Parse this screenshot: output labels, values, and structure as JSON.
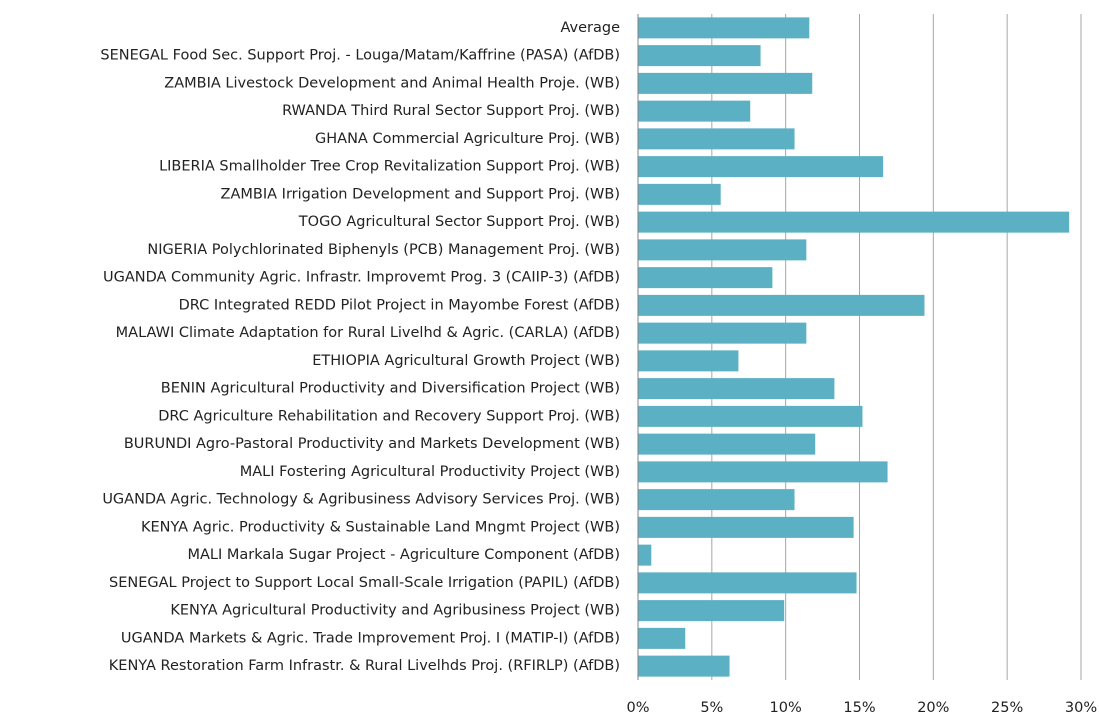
{
  "chart_data": {
    "type": "bar",
    "orientation": "horizontal",
    "color": "#5bb0c3",
    "grid": true,
    "categories": [
      "Average",
      "SENEGAL Food Sec. Support Proj. - Louga/Matam/Kaffrine (PASA)  (AfDB)",
      "ZAMBIA Livestock Development and Animal Health Proje. (WB)",
      "RWANDA Third Rural Sector Support Proj. (WB)",
      "GHANA Commercial Agriculture Proj. (WB)",
      "LIBERIA Smallholder Tree Crop Revitalization Support Proj. (WB)",
      "ZAMBIA Irrigation Development and Support Proj. (WB)",
      "TOGO Agricultural Sector Support Proj. (WB)",
      "NIGERIA Polychlorinated Biphenyls (PCB) Management Proj. (WB)",
      "UGANDA Community Agric. Infrastr. Improvemt Prog. 3 (CAIIP-3) (AfDB)",
      "DRC Integrated REDD Pilot Project in Mayombe Forest (AfDB)",
      "MALAWI Climate Adaptation for Rural Livelhd & Agric. (CARLA)  (AfDB)",
      "ETHIOPIA Agricultural Growth Project (WB)",
      "BENIN Agricultural Productivity and Diversification Project  (WB)",
      "DRC  Agriculture Rehabilitation and Recovery Support Proj. (WB)",
      "BURUNDI Agro-Pastoral Productivity and Markets Development  (WB)",
      "MALI Fostering Agricultural Productivity Project (WB)",
      "UGANDA Agric. Technology & Agribusiness Advisory Services Proj. (WB)",
      "KENYA Agric. Productivity & Sustainable Land Mngmt Project  (WB)",
      "MALI Markala Sugar Project - Agriculture Component (AfDB)",
      "SENEGAL Project to Support Local Small-Scale Irrigation (PAPIL) (AfDB)",
      "KENYA Agricultural Productivity and Agribusiness Project  (WB)",
      "UGANDA Markets & Agric. Trade Improvement Proj. I (MATIP-I) (AfDB)",
      "KENYA Restoration Farm Infrastr. & Rural Livelhds Proj. (RFIRLP) (AfDB)"
    ],
    "values": [
      11.6,
      8.3,
      11.8,
      7.6,
      10.6,
      16.6,
      5.6,
      29.2,
      11.4,
      9.1,
      19.4,
      11.4,
      6.8,
      13.3,
      15.2,
      12.0,
      16.9,
      10.6,
      14.6,
      0.9,
      14.8,
      9.9,
      3.2,
      6.2
    ],
    "xlim": [
      0,
      30
    ],
    "xticks": [
      {
        "value": 0,
        "label": "0%"
      },
      {
        "value": 5,
        "label": "5%"
      },
      {
        "value": 10,
        "label": "10%"
      },
      {
        "value": 15,
        "label": "15%"
      },
      {
        "value": 20,
        "label": "20%"
      },
      {
        "value": 25,
        "label": "25%"
      },
      {
        "value": 30,
        "label": "30%"
      }
    ]
  }
}
